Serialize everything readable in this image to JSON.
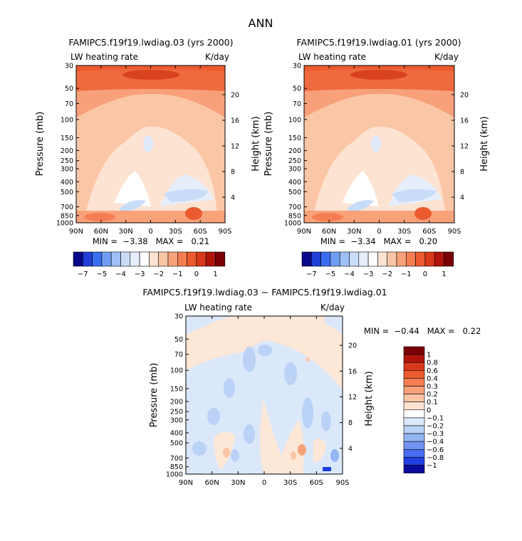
{
  "figure": {
    "title": "ANN"
  },
  "chart_data": [
    {
      "type": "heatmap",
      "title": "FAMIPC5.f19f19.lwdiag.03 (yrs 2000)",
      "subtitle_left": "LW heating rate",
      "subtitle_right": "K/day",
      "ylabel": "Pressure (mb)",
      "ylabel_right": "Height (km)",
      "xticks": [
        "90N",
        "60N",
        "30N",
        "0",
        "30S",
        "60S",
        "90S"
      ],
      "yticks": [
        "30",
        "50",
        "70",
        "100",
        "150",
        "200",
        "250",
        "300",
        "400",
        "500",
        "700",
        "850",
        "1000"
      ],
      "yticks_right": [
        "20",
        "16",
        "12",
        "8",
        "4"
      ],
      "stats": "MIN =  −3.38   MAX =   0.21",
      "min": -3.38,
      "max": 0.21,
      "colorbar_labels": [
        "−7",
        "−5",
        "−4",
        "−3",
        "−2",
        "−1",
        "0",
        "1"
      ]
    },
    {
      "type": "heatmap",
      "title": "FAMIPC5.f19f19.lwdiag.01 (yrs 2000)",
      "subtitle_left": "LW heating rate",
      "subtitle_right": "K/day",
      "ylabel": "Pressure (mb)",
      "ylabel_right": "Height (km)",
      "xticks": [
        "90N",
        "60N",
        "30N",
        "0",
        "30S",
        "60S",
        "90S"
      ],
      "yticks": [
        "30",
        "50",
        "70",
        "100",
        "150",
        "200",
        "250",
        "300",
        "400",
        "500",
        "700",
        "850",
        "1000"
      ],
      "yticks_right": [
        "20",
        "16",
        "12",
        "8",
        "4"
      ],
      "stats": "MIN =  −3.34   MAX =   0.20",
      "min": -3.34,
      "max": 0.2,
      "colorbar_labels": [
        "−7",
        "−5",
        "−4",
        "−3",
        "−2",
        "−1",
        "0",
        "1"
      ]
    },
    {
      "type": "heatmap",
      "title": "FAMIPC5.f19f19.lwdiag.03 − FAMIPC5.f19f19.lwdiag.01",
      "subtitle_left": "LW heating rate",
      "subtitle_right": "K/day",
      "ylabel": "Pressure (mb)",
      "ylabel_right": "Height (km)",
      "xticks": [
        "90N",
        "60N",
        "30N",
        "0",
        "30S",
        "60S",
        "90S"
      ],
      "yticks": [
        "30",
        "50",
        "70",
        "100",
        "150",
        "200",
        "250",
        "300",
        "400",
        "500",
        "700",
        "850",
        "1000"
      ],
      "yticks_right": [
        "20",
        "16",
        "12",
        "8",
        "4"
      ],
      "stats": "MIN =  −0.44   MAX =   0.22",
      "min": -0.44,
      "max": 0.22,
      "colorbar_labels": [
        "1",
        "0.8",
        "0.6",
        "0.4",
        "0.3",
        "0.2",
        "0.1",
        "0",
        "−0.1",
        "−0.2",
        "−0.3",
        "−0.4",
        "−0.6",
        "−0.8",
        "−1"
      ]
    }
  ],
  "colors": {
    "cb_horizontal": [
      "#08088a",
      "#1f3fd6",
      "#3a6ef0",
      "#6f9df3",
      "#9ec0f6",
      "#c8dcf8",
      "#e6eefb",
      "#ffffff",
      "#fde3d1",
      "#fbc6a6",
      "#f8a27a",
      "#f47e52",
      "#ec5a30",
      "#d9391a",
      "#b0140b",
      "#7a0006"
    ],
    "cb_vertical": [
      "#7a0006",
      "#b0140b",
      "#d9391a",
      "#ec5a30",
      "#f47e52",
      "#f8a27a",
      "#fbc6a6",
      "#fde3d1",
      "#ffffff",
      "#dbe8fa",
      "#bad2f6",
      "#93b6f2",
      "#6f93ee",
      "#4a6df0",
      "#2140e0",
      "#0a0a9e"
    ]
  }
}
